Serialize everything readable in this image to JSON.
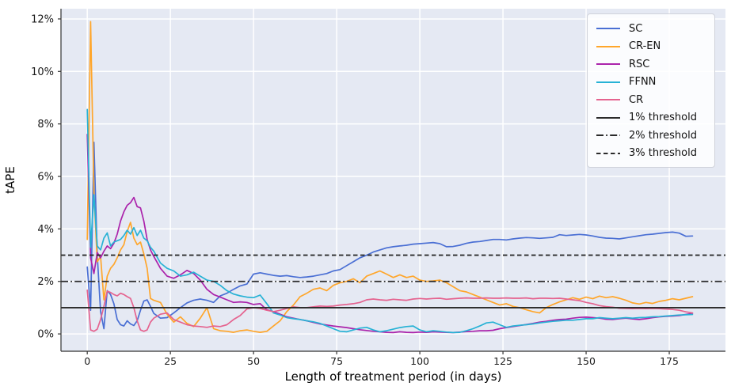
{
  "figure": {
    "kind": "matplotlib-style line figure",
    "background": "#ffffff"
  },
  "chart_data": {
    "type": "line",
    "title": "",
    "xlabel": "Length of treatment period (in days)",
    "ylabel": "tAPE",
    "xlim": [
      -7.9,
      191.9
    ],
    "ylim": [
      -0.66,
      12.39
    ],
    "x_ticks": [
      0,
      25,
      50,
      75,
      100,
      125,
      150,
      175
    ],
    "y_ticks": [
      0,
      2,
      4,
      6,
      8,
      10,
      12
    ],
    "y_tick_labels": [
      "0%",
      "2%",
      "4%",
      "6%",
      "8%",
      "10%",
      "12%"
    ],
    "grid": true,
    "plot_background": "#e5e9f3",
    "grid_color": "#ffffff",
    "spine_color": "#333333",
    "tick_label_color": "#1a1a1a",
    "legend_position": "upper right",
    "x": [
      0,
      1,
      2,
      3,
      4,
      5,
      6,
      7,
      8,
      9,
      10,
      11,
      12,
      13,
      14,
      15,
      16,
      17,
      18,
      19,
      20,
      22,
      24,
      26,
      28,
      30,
      32,
      34,
      36,
      38,
      40,
      42,
      44,
      46,
      48,
      50,
      52,
      54,
      56,
      58,
      60,
      62,
      64,
      66,
      68,
      70,
      72,
      74,
      76,
      78,
      80,
      82,
      84,
      86,
      88,
      90,
      92,
      94,
      96,
      98,
      100,
      102,
      104,
      106,
      108,
      110,
      112,
      114,
      116,
      118,
      120,
      122,
      124,
      126,
      128,
      130,
      132,
      134,
      136,
      138,
      140,
      142,
      144,
      146,
      148,
      150,
      152,
      154,
      156,
      158,
      160,
      162,
      164,
      166,
      168,
      170,
      172,
      174,
      176,
      178,
      180,
      182
    ],
    "series": [
      {
        "name": "SC",
        "color": "#4a6fd4",
        "values": [
          2.55,
          0.9,
          7.3,
          3.0,
          0.85,
          0.2,
          1.65,
          1.5,
          1.15,
          0.55,
          0.35,
          0.3,
          0.5,
          0.38,
          0.32,
          0.5,
          0.9,
          1.25,
          1.3,
          1.05,
          0.78,
          0.6,
          0.62,
          0.8,
          1.0,
          1.18,
          1.28,
          1.33,
          1.28,
          1.2,
          1.45,
          1.55,
          1.7,
          1.83,
          1.9,
          2.28,
          2.33,
          2.28,
          2.23,
          2.2,
          2.22,
          2.18,
          2.15,
          2.17,
          2.2,
          2.25,
          2.3,
          2.4,
          2.45,
          2.6,
          2.75,
          2.9,
          3.0,
          3.12,
          3.2,
          3.28,
          3.32,
          3.35,
          3.38,
          3.42,
          3.44,
          3.46,
          3.48,
          3.44,
          3.32,
          3.33,
          3.38,
          3.45,
          3.5,
          3.52,
          3.56,
          3.6,
          3.6,
          3.58,
          3.62,
          3.65,
          3.67,
          3.66,
          3.64,
          3.66,
          3.68,
          3.78,
          3.75,
          3.77,
          3.79,
          3.77,
          3.73,
          3.68,
          3.65,
          3.64,
          3.62,
          3.66,
          3.7,
          3.74,
          3.78,
          3.8,
          3.83,
          3.86,
          3.88,
          3.84,
          3.72,
          3.73
        ]
      },
      {
        "name": "CR-EN",
        "color": "#ffa62b",
        "values": [
          3.6,
          11.9,
          5.4,
          2.75,
          2.95,
          1.3,
          2.2,
          2.5,
          2.65,
          2.9,
          3.2,
          3.4,
          3.9,
          4.25,
          3.65,
          3.4,
          3.5,
          3.05,
          2.5,
          1.35,
          1.28,
          1.2,
          0.75,
          0.45,
          0.65,
          0.4,
          0.28,
          0.6,
          1.0,
          0.2,
          0.12,
          0.1,
          0.06,
          0.12,
          0.15,
          0.1,
          0.06,
          0.1,
          0.3,
          0.5,
          0.85,
          1.1,
          1.42,
          1.55,
          1.7,
          1.75,
          1.65,
          1.85,
          1.95,
          2.0,
          2.1,
          1.95,
          2.2,
          2.3,
          2.4,
          2.28,
          2.15,
          2.25,
          2.15,
          2.2,
          2.05,
          2.0,
          2.02,
          2.05,
          1.95,
          1.8,
          1.65,
          1.6,
          1.5,
          1.4,
          1.3,
          1.2,
          1.1,
          1.15,
          1.05,
          1.0,
          0.92,
          0.85,
          0.8,
          1.0,
          1.12,
          1.22,
          1.3,
          1.38,
          1.32,
          1.4,
          1.34,
          1.44,
          1.38,
          1.42,
          1.36,
          1.28,
          1.18,
          1.14,
          1.2,
          1.16,
          1.24,
          1.28,
          1.34,
          1.3,
          1.36,
          1.42
        ]
      },
      {
        "name": "RSC",
        "color": "#ab23ab",
        "values": [
          7.6,
          2.9,
          2.3,
          3.1,
          2.9,
          3.15,
          3.35,
          3.25,
          3.45,
          3.8,
          4.3,
          4.65,
          4.9,
          5.0,
          5.2,
          4.85,
          4.8,
          4.3,
          3.6,
          3.2,
          2.95,
          2.5,
          2.2,
          2.12,
          2.25,
          2.42,
          2.3,
          2.05,
          1.7,
          1.5,
          1.4,
          1.3,
          1.2,
          1.22,
          1.2,
          1.12,
          1.15,
          0.92,
          0.85,
          0.75,
          0.65,
          0.6,
          0.55,
          0.5,
          0.44,
          0.38,
          0.34,
          0.3,
          0.27,
          0.24,
          0.2,
          0.16,
          0.13,
          0.1,
          0.08,
          0.06,
          0.05,
          0.08,
          0.06,
          0.05,
          0.07,
          0.06,
          0.08,
          0.07,
          0.06,
          0.05,
          0.07,
          0.09,
          0.1,
          0.12,
          0.12,
          0.14,
          0.2,
          0.24,
          0.28,
          0.32,
          0.36,
          0.4,
          0.45,
          0.48,
          0.52,
          0.55,
          0.56,
          0.6,
          0.63,
          0.64,
          0.62,
          0.6,
          0.56,
          0.55,
          0.58,
          0.6,
          0.57,
          0.55,
          0.58,
          0.62,
          0.65,
          0.67,
          0.68,
          0.7,
          0.74,
          0.78
        ]
      },
      {
        "name": "FFNN",
        "color": "#27b2d5",
        "values": [
          8.55,
          3.3,
          5.3,
          3.35,
          3.2,
          3.65,
          3.85,
          3.35,
          3.5,
          3.55,
          3.6,
          3.75,
          3.95,
          3.8,
          4.05,
          3.75,
          3.95,
          3.65,
          3.55,
          3.3,
          3.15,
          2.7,
          2.5,
          2.4,
          2.2,
          2.25,
          2.35,
          2.2,
          2.05,
          2.0,
          1.85,
          1.65,
          1.52,
          1.45,
          1.4,
          1.38,
          1.48,
          1.15,
          0.8,
          0.72,
          0.62,
          0.58,
          0.55,
          0.5,
          0.46,
          0.4,
          0.3,
          0.2,
          0.1,
          0.08,
          0.15,
          0.22,
          0.25,
          0.15,
          0.08,
          0.12,
          0.18,
          0.24,
          0.28,
          0.3,
          0.15,
          0.08,
          0.12,
          0.1,
          0.07,
          0.05,
          0.06,
          0.12,
          0.2,
          0.3,
          0.42,
          0.45,
          0.35,
          0.25,
          0.3,
          0.33,
          0.35,
          0.38,
          0.42,
          0.45,
          0.48,
          0.5,
          0.52,
          0.52,
          0.55,
          0.58,
          0.58,
          0.62,
          0.6,
          0.58,
          0.6,
          0.62,
          0.6,
          0.62,
          0.63,
          0.65,
          0.66,
          0.68,
          0.7,
          0.72,
          0.73,
          0.74
        ]
      },
      {
        "name": "CR",
        "color": "#e5638f",
        "values": [
          1.67,
          0.15,
          0.1,
          0.18,
          0.55,
          1.05,
          1.63,
          1.58,
          1.5,
          1.45,
          1.55,
          1.5,
          1.42,
          1.35,
          1.0,
          0.5,
          0.15,
          0.1,
          0.15,
          0.45,
          0.6,
          0.75,
          0.8,
          0.55,
          0.45,
          0.35,
          0.3,
          0.28,
          0.25,
          0.3,
          0.28,
          0.35,
          0.55,
          0.7,
          0.95,
          1.0,
          0.97,
          0.9,
          0.85,
          0.9,
          0.97,
          1.03,
          1.0,
          1.0,
          1.03,
          1.06,
          1.05,
          1.06,
          1.1,
          1.12,
          1.15,
          1.2,
          1.3,
          1.33,
          1.3,
          1.28,
          1.32,
          1.3,
          1.28,
          1.33,
          1.35,
          1.33,
          1.35,
          1.36,
          1.32,
          1.34,
          1.36,
          1.37,
          1.36,
          1.36,
          1.37,
          1.36,
          1.36,
          1.37,
          1.36,
          1.36,
          1.37,
          1.34,
          1.36,
          1.36,
          1.35,
          1.36,
          1.33,
          1.3,
          1.27,
          1.2,
          1.15,
          1.08,
          1.04,
          1.02,
          0.98,
          0.97,
          0.96,
          0.97,
          0.96,
          0.97,
          0.96,
          0.95,
          0.93,
          0.9,
          0.84,
          0.8
        ]
      }
    ],
    "thresholds": [
      {
        "label": "1% threshold",
        "value": 1,
        "dash": "solid",
        "color": "#2b2b2b"
      },
      {
        "label": "2% threshold",
        "value": 2,
        "dash": "dashdot",
        "color": "#2b2b2b"
      },
      {
        "label": "3% threshold",
        "value": 3,
        "dash": "dashed",
        "color": "#2b2b2b"
      }
    ],
    "legend": {
      "items": [
        {
          "label": "SC",
          "color": "#4a6fd4",
          "dash": "solid"
        },
        {
          "label": "CR-EN",
          "color": "#ffa62b",
          "dash": "solid"
        },
        {
          "label": "RSC",
          "color": "#ab23ab",
          "dash": "solid"
        },
        {
          "label": "FFNN",
          "color": "#27b2d5",
          "dash": "solid"
        },
        {
          "label": "CR",
          "color": "#e5638f",
          "dash": "solid"
        },
        {
          "label": "1% threshold",
          "color": "#2b2b2b",
          "dash": "solid"
        },
        {
          "label": "2% threshold",
          "color": "#2b2b2b",
          "dash": "dashdot"
        },
        {
          "label": "3% threshold",
          "color": "#2b2b2b",
          "dash": "dashed"
        }
      ]
    }
  }
}
